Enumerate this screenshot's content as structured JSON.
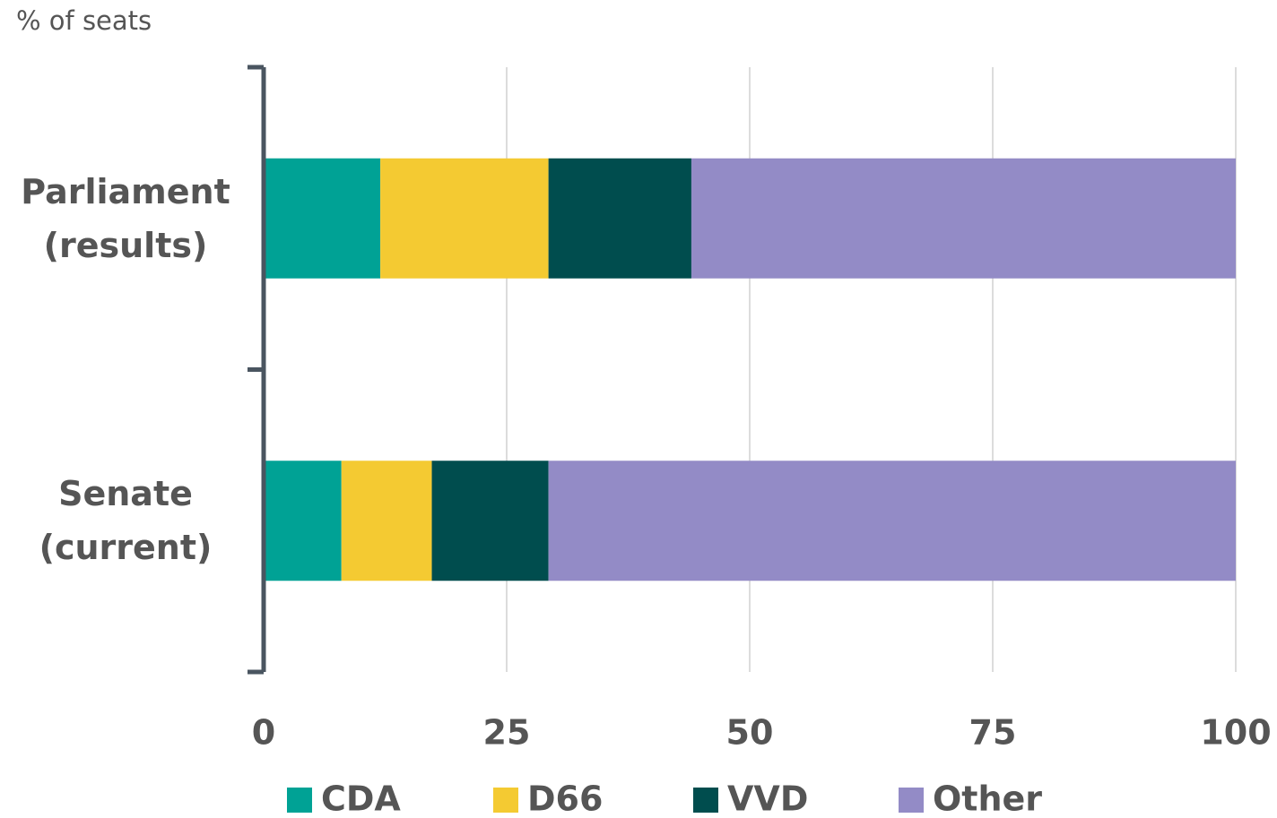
{
  "chart_data": {
    "type": "stacked-barh",
    "axis_label": "% of seats",
    "categories": [
      "Parliament (results)",
      "Senate (current)"
    ],
    "series": [
      {
        "name": "CDA",
        "color": "#00a295",
        "values": [
          12,
          8
        ]
      },
      {
        "name": "D66",
        "color": "#f4ca32",
        "values": [
          17.3,
          9.3
        ]
      },
      {
        "name": "VVD",
        "color": "#004d4e",
        "values": [
          14.7,
          12
        ]
      },
      {
        "name": "Other",
        "color": "#938bc6",
        "values": [
          56,
          70.7
        ]
      }
    ],
    "xlim": [
      0,
      100
    ],
    "xticks": [
      0,
      25,
      50,
      75,
      100
    ],
    "grid": true
  }
}
